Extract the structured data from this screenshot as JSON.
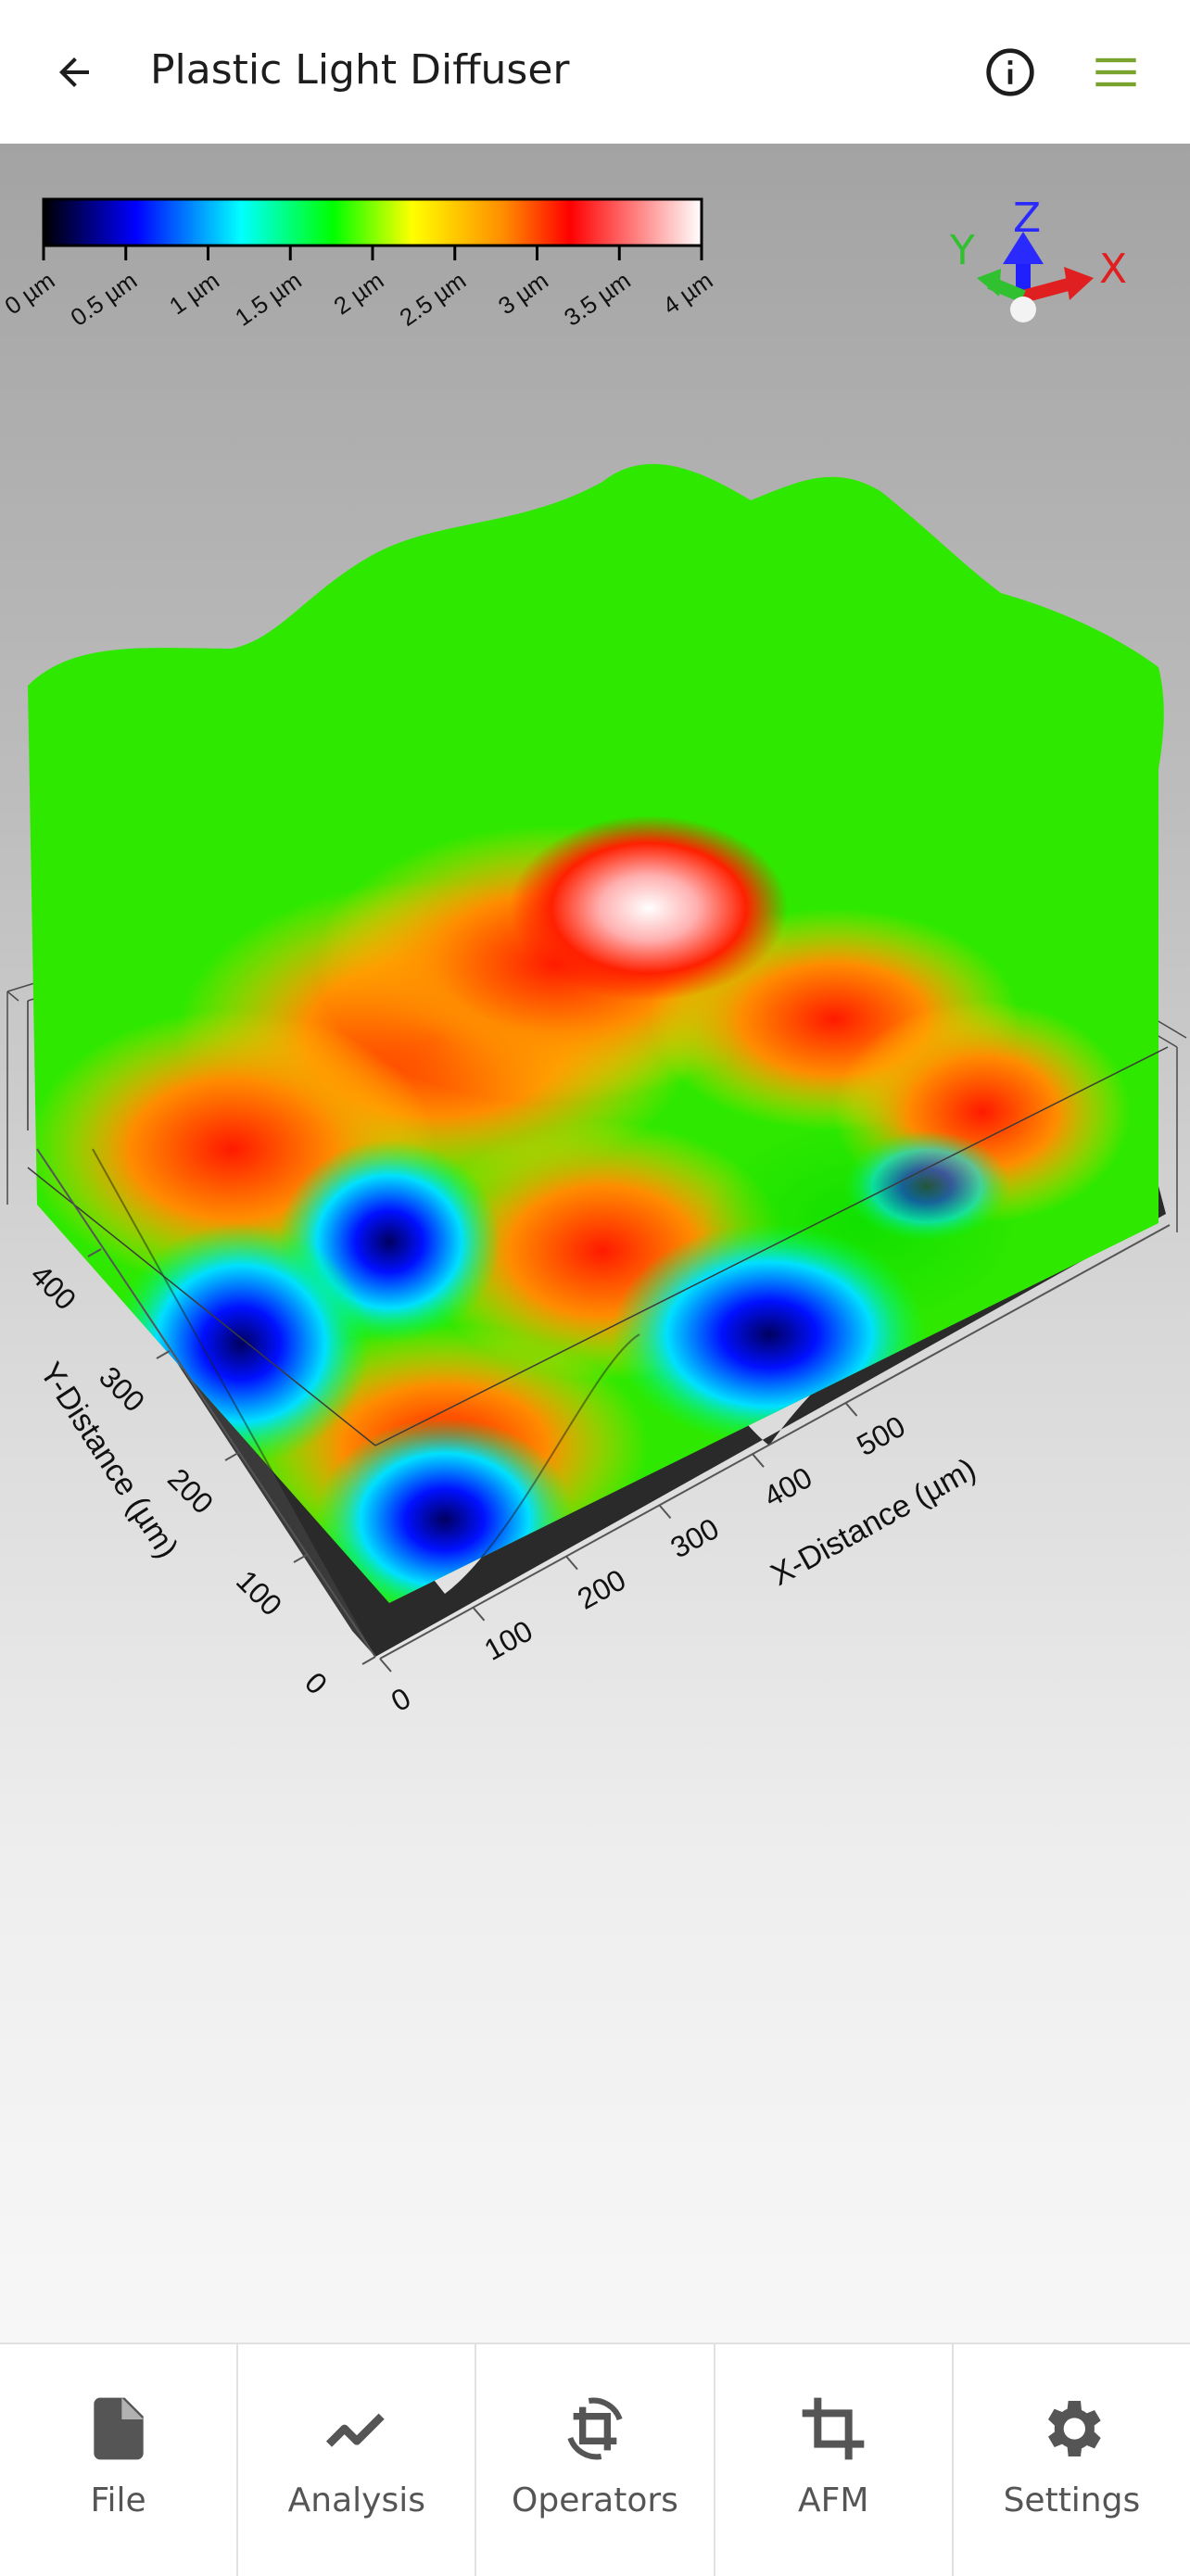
{
  "app_bar": {
    "title": "Plastic Light Diffuser",
    "back_icon": "arrow-back-icon",
    "info_icon": "info-icon",
    "menu_icon": "hamburger-menu-icon",
    "menu_icon_color": "#7aa32d"
  },
  "colorbar": {
    "ticks": [
      "0 µm",
      "0.5 µm",
      "1 µm",
      "1.5 µm",
      "2 µm",
      "2.5 µm",
      "3 µm",
      "3.5 µm",
      "4 µm"
    ],
    "colors": [
      "#000000",
      "#0000ff",
      "#00ffff",
      "#00ff00",
      "#ffff00",
      "#ff8c00",
      "#ff0000",
      "#ffffff"
    ]
  },
  "axis_triad": {
    "x": "X",
    "y": "Y",
    "z": "Z"
  },
  "chart_data": {
    "type": "surface",
    "xlabel": "X-Distance (µm)",
    "ylabel": "Y-Distance (µm)",
    "x_ticks": [
      "0",
      "100",
      "200",
      "300",
      "400",
      "500"
    ],
    "y_ticks": [
      "0",
      "100",
      "200",
      "300",
      "400"
    ],
    "z_range": [
      0,
      4
    ],
    "z_unit": "µm"
  },
  "bottom_nav": {
    "items": [
      {
        "label": "File",
        "icon": "file-icon"
      },
      {
        "label": "Analysis",
        "icon": "trend-line-icon"
      },
      {
        "label": "Operators",
        "icon": "crop-rotate-icon"
      },
      {
        "label": "AFM",
        "icon": "crop-icon"
      },
      {
        "label": "Settings",
        "icon": "gear-icon"
      }
    ]
  }
}
